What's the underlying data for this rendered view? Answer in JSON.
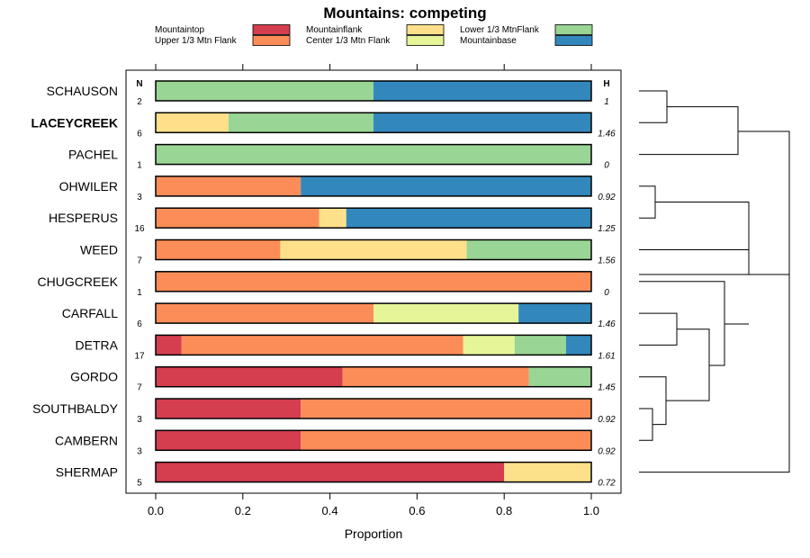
{
  "chart_data": {
    "type": "bar",
    "orientation": "horizontal",
    "stacked": true,
    "title": "Mountains: competing",
    "xlabel": "Proportion",
    "ylabel": "",
    "xlim": [
      0,
      1
    ],
    "x_ticks": [
      "0.0",
      "0.2",
      "0.4",
      "0.6",
      "0.8",
      "1.0"
    ],
    "n_header": "N",
    "h_header": "H",
    "legend_position": "top",
    "series": [
      {
        "name": "Mountaintop",
        "color": "#d53e4f"
      },
      {
        "name": "Upper 1/3 Mtn Flank",
        "color": "#fc8d59"
      },
      {
        "name": "Mountainflank",
        "color": "#fee08b"
      },
      {
        "name": "Center 1/3 Mtn Flank",
        "color": "#e6f598"
      },
      {
        "name": "Lower 1/3 MtnFlank",
        "color": "#99d594"
      },
      {
        "name": "Mountainbase",
        "color": "#3288bd"
      }
    ],
    "categories": [
      {
        "name": "SCHAUSON",
        "bold": false,
        "n": "2",
        "h": "1",
        "values": [
          0,
          0,
          0,
          0,
          0.5,
          0.5
        ]
      },
      {
        "name": "LACEYCREEK",
        "bold": true,
        "n": "6",
        "h": "1.46",
        "values": [
          0,
          0,
          0.167,
          0,
          0.333,
          0.5
        ]
      },
      {
        "name": "PACHEL",
        "bold": false,
        "n": "1",
        "h": "0",
        "values": [
          0,
          0,
          0,
          0,
          1,
          0
        ]
      },
      {
        "name": "OHWILER",
        "bold": false,
        "n": "3",
        "h": "0.92",
        "values": [
          0,
          0.333,
          0,
          0,
          0,
          0.667
        ]
      },
      {
        "name": "HESPERUS",
        "bold": false,
        "n": "16",
        "h": "1.25",
        "values": [
          0,
          0.375,
          0.0625,
          0,
          0,
          0.5625
        ]
      },
      {
        "name": "WEED",
        "bold": false,
        "n": "7",
        "h": "1.56",
        "values": [
          0,
          0.286,
          0.428,
          0,
          0.286,
          0
        ]
      },
      {
        "name": "CHUGCREEK",
        "bold": false,
        "n": "1",
        "h": "0",
        "values": [
          0,
          1,
          0,
          0,
          0,
          0
        ]
      },
      {
        "name": "CARFALL",
        "bold": false,
        "n": "6",
        "h": "1.46",
        "values": [
          0,
          0.5,
          0,
          0.333,
          0,
          0.167
        ]
      },
      {
        "name": "DETRA",
        "bold": false,
        "n": "17",
        "h": "1.61",
        "values": [
          0.059,
          0.647,
          0,
          0.118,
          0.118,
          0.058
        ]
      },
      {
        "name": "GORDO",
        "bold": false,
        "n": "7",
        "h": "1.45",
        "values": [
          0.429,
          0.428,
          0,
          0,
          0.143,
          0
        ]
      },
      {
        "name": "SOUTHBALDY",
        "bold": false,
        "n": "3",
        "h": "0.92",
        "values": [
          0.333,
          0.667,
          0,
          0,
          0,
          0
        ]
      },
      {
        "name": "CAMBERN",
        "bold": false,
        "n": "3",
        "h": "0.92",
        "values": [
          0.333,
          0.667,
          0,
          0,
          0,
          0
        ]
      },
      {
        "name": "SHERMAP",
        "bold": false,
        "n": "5",
        "h": "0.72",
        "values": [
          0.8,
          0,
          0.2,
          0,
          0,
          0
        ]
      }
    ]
  }
}
